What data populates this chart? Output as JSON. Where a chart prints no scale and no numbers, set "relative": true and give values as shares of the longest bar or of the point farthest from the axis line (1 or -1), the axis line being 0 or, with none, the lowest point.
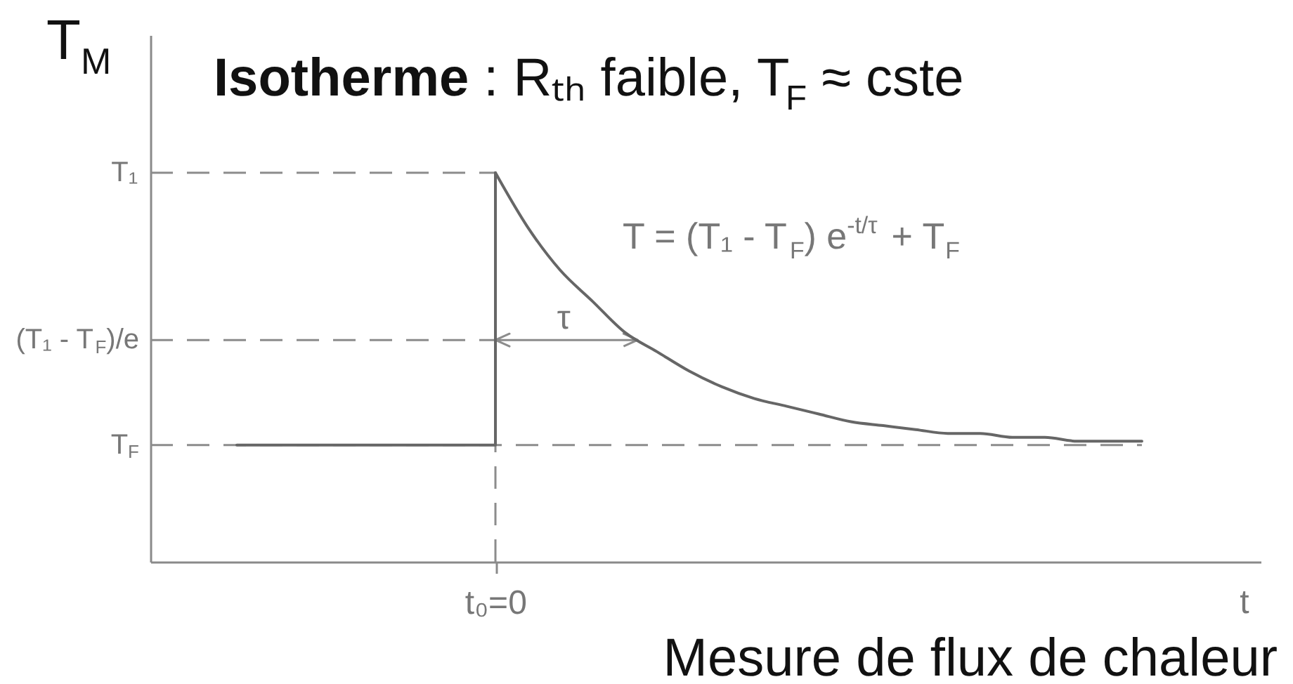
{
  "chart_data": {
    "type": "line",
    "title": "Isotherme : Rₜₕ faible, T$_{F}$ ≈ cste",
    "ylabel": "T$_{M}$",
    "xlabel": "t",
    "relative": true,
    "categories": [
      null,
      null,
      null,
      null,
      null,
      null,
      null,
      null,
      null,
      null,
      null,
      null,
      null,
      null,
      null,
      null,
      null,
      null,
      null,
      null,
      null,
      null,
      null,
      null,
      null,
      null,
      null,
      null,
      null,
      null,
      null,
      null,
      null,
      null
    ],
    "series": [
      {
        "type": "step",
        "color": "#666666",
        "values": [
          null,
          null,
          0.3,
          0.3,
          0.3,
          0.3,
          0.3,
          0.3,
          0.3,
          0.3,
          1.0,
          null,
          null,
          null,
          null,
          null,
          null,
          null,
          null,
          null,
          null,
          null,
          null,
          null,
          null,
          null,
          null,
          null,
          null,
          null,
          null,
          null,
          null,
          null
        ]
      },
      {
        "color": "#666666",
        "values": [
          null,
          null,
          null,
          null,
          null,
          null,
          null,
          null,
          null,
          null,
          1.0,
          0.86,
          0.75,
          0.67,
          0.59,
          0.54,
          0.49,
          0.45,
          0.42,
          0.4,
          0.38,
          0.36,
          0.35,
          0.34,
          0.33,
          0.33,
          0.32,
          0.32,
          0.31,
          0.31,
          0.31,
          null,
          null,
          null
        ]
      }
    ],
    "ref_lines": [
      {
        "axis": "y",
        "value": 1.0,
        "label": "T₁",
        "line_style": "dashed",
        "color": "#8c8c8c"
      },
      {
        "axis": "y",
        "value": 0.57,
        "label": "(T₁ - T$_{F}$)/e",
        "line_style": "dashed",
        "color": "#8c8c8c"
      },
      {
        "axis": "y",
        "value": 0.3,
        "label": "T$_{F}$",
        "line_style": "dashed",
        "color": "#8c8c8c"
      }
    ],
    "annotations": [
      "t₀=0",
      {
        "text": "τ",
        "y": 0.57
      },
      "T = (T₁ - T$_{F}$) e$^{-t/τ}$ + T$_{F}$",
      "Mesure de flux de chaleur"
    ]
  }
}
